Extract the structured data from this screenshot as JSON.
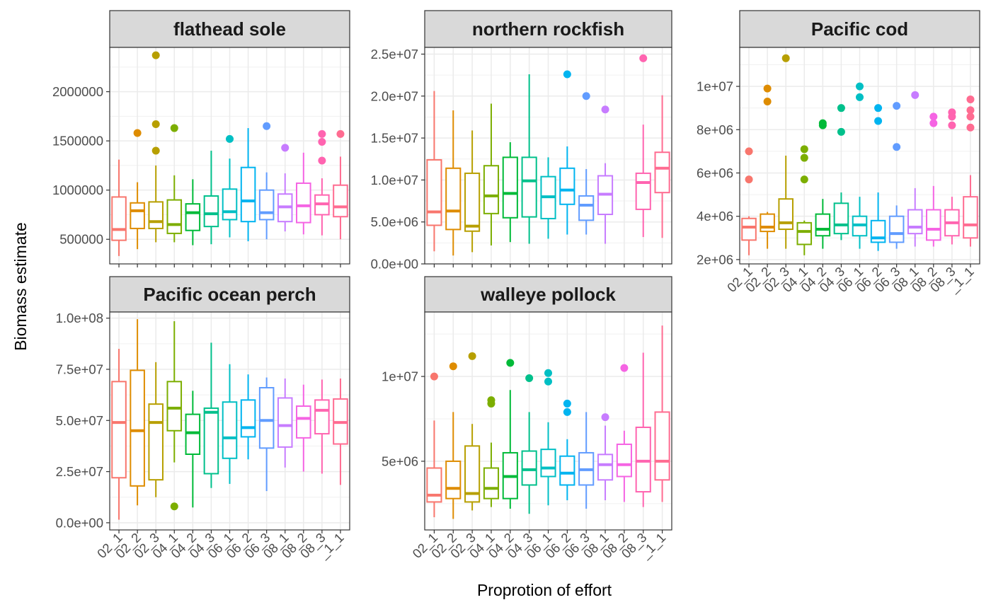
{
  "chart_data": {
    "type": "box",
    "ylabel": "Biomass estimate",
    "xlabel": "Proprotion of effort",
    "categories": [
      "02_1",
      "02_2",
      "02_3",
      "04_1",
      "04_2",
      "04_3",
      "06_1",
      "06_2",
      "06_3",
      "08_1",
      "08_2",
      "08_3",
      "_1_1"
    ],
    "colors": [
      "#F8766D",
      "#DE8C00",
      "#B79F00",
      "#7CAE00",
      "#00BA38",
      "#00C08B",
      "#00BFC4",
      "#00B4F0",
      "#619CFF",
      "#C77CFF",
      "#F564E3",
      "#FF64B0",
      "#FF6C91"
    ],
    "panels": [
      {
        "title": "flathead sole",
        "ylim": [
          250000,
          2450000
        ],
        "yticks": [
          500000,
          1000000,
          1500000,
          2000000
        ],
        "ytick_labels": [
          "500000",
          "1000000",
          "1500000",
          "2000000"
        ],
        "boxes": [
          {
            "lo": 330000,
            "q1": 490000,
            "med": 600000,
            "q3": 930000,
            "hi": 1310000,
            "out": []
          },
          {
            "lo": 400000,
            "q1": 610000,
            "med": 790000,
            "q3": 870000,
            "hi": 1080000,
            "out": [
              1580000
            ]
          },
          {
            "lo": 470000,
            "q1": 610000,
            "med": 680000,
            "q3": 880000,
            "hi": 1250000,
            "out": [
              1400000,
              1670000,
              2370000
            ]
          },
          {
            "lo": 470000,
            "q1": 560000,
            "med": 650000,
            "q3": 900000,
            "hi": 1150000,
            "out": [
              1630000
            ]
          },
          {
            "lo": 440000,
            "q1": 590000,
            "med": 770000,
            "q3": 860000,
            "hi": 1110000,
            "out": []
          },
          {
            "lo": 450000,
            "q1": 630000,
            "med": 760000,
            "q3": 940000,
            "hi": 1400000,
            "out": []
          },
          {
            "lo": 520000,
            "q1": 700000,
            "med": 780000,
            "q3": 1010000,
            "hi": 1320000,
            "out": [
              1520000
            ]
          },
          {
            "lo": 480000,
            "q1": 680000,
            "med": 890000,
            "q3": 1230000,
            "hi": 1630000,
            "out": []
          },
          {
            "lo": 500000,
            "q1": 700000,
            "med": 770000,
            "q3": 1000000,
            "hi": 1180000,
            "out": [
              1650000
            ]
          },
          {
            "lo": 580000,
            "q1": 680000,
            "med": 830000,
            "q3": 960000,
            "hi": 1170000,
            "out": [
              1430000
            ]
          },
          {
            "lo": 550000,
            "q1": 670000,
            "med": 840000,
            "q3": 1070000,
            "hi": 1380000,
            "out": []
          },
          {
            "lo": 540000,
            "q1": 750000,
            "med": 860000,
            "q3": 950000,
            "hi": 1120000,
            "out": [
              1300000,
              1490000,
              1570000
            ]
          },
          {
            "lo": 500000,
            "q1": 730000,
            "med": 830000,
            "q3": 1050000,
            "hi": 1340000,
            "out": [
              1570000
            ]
          }
        ]
      },
      {
        "title": "northern rockfish",
        "ylim": [
          0,
          25800000
        ],
        "yticks": [
          0,
          5000000,
          10000000,
          15000000,
          20000000,
          25000000
        ],
        "ytick_labels": [
          "0.0e+00",
          "5.0e+06",
          "1.0e+07",
          "1.5e+07",
          "2.0e+07",
          "2.5e+07"
        ],
        "boxes": [
          {
            "lo": 1500000,
            "q1": 4600000,
            "med": 6200000,
            "q3": 12400000,
            "hi": 20600000,
            "out": []
          },
          {
            "lo": 1000000,
            "q1": 4100000,
            "med": 6300000,
            "q3": 11400000,
            "hi": 18300000,
            "out": []
          },
          {
            "lo": 1400000,
            "q1": 3900000,
            "med": 4500000,
            "q3": 10800000,
            "hi": 15900000,
            "out": []
          },
          {
            "lo": 2200000,
            "q1": 6000000,
            "med": 8100000,
            "q3": 11700000,
            "hi": 19100000,
            "out": []
          },
          {
            "lo": 2600000,
            "q1": 5500000,
            "med": 8400000,
            "q3": 12700000,
            "hi": 14500000,
            "out": []
          },
          {
            "lo": 2400000,
            "q1": 5600000,
            "med": 9900000,
            "q3": 12700000,
            "hi": 22600000,
            "out": []
          },
          {
            "lo": 3000000,
            "q1": 5400000,
            "med": 8000000,
            "q3": 10400000,
            "hi": 12700000,
            "out": []
          },
          {
            "lo": 3500000,
            "q1": 7100000,
            "med": 8800000,
            "q3": 11400000,
            "hi": 14000000,
            "out": [
              22600000
            ]
          },
          {
            "lo": 3500000,
            "q1": 5200000,
            "med": 7000000,
            "q3": 8100000,
            "hi": 11300000,
            "out": [
              20000000
            ]
          },
          {
            "lo": 2400000,
            "q1": 5900000,
            "med": 8300000,
            "q3": 10500000,
            "hi": 12000000,
            "out": [
              18400000
            ]
          },
          null,
          {
            "lo": 3200000,
            "q1": 6500000,
            "med": 9700000,
            "q3": 10800000,
            "hi": 16600000,
            "out": [
              24500000
            ]
          },
          {
            "lo": 3100000,
            "q1": 8500000,
            "med": 11400000,
            "q3": 13300000,
            "hi": 20100000,
            "out": []
          }
        ]
      },
      {
        "title": "Pacific cod",
        "ylim": [
          1800000,
          11800000
        ],
        "yticks": [
          2000000,
          4000000,
          6000000,
          8000000,
          10000000
        ],
        "ytick_labels": [
          "2e+06",
          "4e+06",
          "6e+06",
          "8e+06",
          "1e+07"
        ],
        "boxes": [
          {
            "lo": 2200000,
            "q1": 2900000,
            "med": 3500000,
            "q3": 3900000,
            "hi": 4000000,
            "out": [
              5700000,
              7000000
            ]
          },
          {
            "lo": 2500000,
            "q1": 3300000,
            "med": 3500000,
            "q3": 4100000,
            "hi": 4200000,
            "out": [
              9300000,
              9900000
            ]
          },
          {
            "lo": 2500000,
            "q1": 3400000,
            "med": 3700000,
            "q3": 4800000,
            "hi": 6800000,
            "out": [
              11300000
            ]
          },
          {
            "lo": 2200000,
            "q1": 2700000,
            "med": 3300000,
            "q3": 3700000,
            "hi": 3800000,
            "out": [
              5700000,
              6700000,
              7100000
            ]
          },
          {
            "lo": 2500000,
            "q1": 3100000,
            "med": 3400000,
            "q3": 4100000,
            "hi": 4800000,
            "out": [
              8200000,
              8300000
            ]
          },
          {
            "lo": 2900000,
            "q1": 3200000,
            "med": 3600000,
            "q3": 4600000,
            "hi": 5100000,
            "out": [
              7900000,
              9000000
            ]
          },
          {
            "lo": 2500000,
            "q1": 3100000,
            "med": 3600000,
            "q3": 4000000,
            "hi": 4900000,
            "out": [
              9500000,
              10000000
            ]
          },
          {
            "lo": 2400000,
            "q1": 2800000,
            "med": 3000000,
            "q3": 3800000,
            "hi": 5100000,
            "out": [
              8400000,
              9000000
            ]
          },
          {
            "lo": 2500000,
            "q1": 2800000,
            "med": 3200000,
            "q3": 4000000,
            "hi": 4500000,
            "out": [
              7200000,
              9100000
            ]
          },
          {
            "lo": 2600000,
            "q1": 3200000,
            "med": 3500000,
            "q3": 4300000,
            "hi": 5300000,
            "out": [
              9600000
            ]
          },
          {
            "lo": 2600000,
            "q1": 2900000,
            "med": 3400000,
            "q3": 4300000,
            "hi": 5400000,
            "out": [
              8300000,
              8600000
            ]
          },
          {
            "lo": 2700000,
            "q1": 3100000,
            "med": 3700000,
            "q3": 4300000,
            "hi": 4900000,
            "out": [
              8200000,
              8600000,
              8800000
            ]
          },
          {
            "lo": 2600000,
            "q1": 3000000,
            "med": 3600000,
            "q3": 4900000,
            "hi": 5900000,
            "out": [
              8100000,
              8600000,
              8900000,
              9400000
            ]
          }
        ]
      },
      {
        "title": "Pacific ocean perch",
        "ylim": [
          -3500000,
          103000000
        ],
        "yticks": [
          0,
          25000000,
          50000000,
          75000000,
          100000000
        ],
        "ytick_labels": [
          "0.0e+00",
          "2.5e+07",
          "5.0e+07",
          "7.5e+07",
          "1.0e+08"
        ],
        "boxes": [
          {
            "lo": 1500000,
            "q1": 22000000,
            "med": 49000000,
            "q3": 69000000,
            "hi": 85000000,
            "out": []
          },
          {
            "lo": 8500000,
            "q1": 18000000,
            "med": 45000000,
            "q3": 74500000,
            "hi": 99500000,
            "out": []
          },
          {
            "lo": 12500000,
            "q1": 21000000,
            "med": 49000000,
            "q3": 58000000,
            "hi": 78500000,
            "out": []
          },
          {
            "lo": 29500000,
            "q1": 45000000,
            "med": 56000000,
            "q3": 69000000,
            "hi": 98500000,
            "out": [
              8000000
            ]
          },
          {
            "lo": 7500000,
            "q1": 33500000,
            "med": 44000000,
            "q3": 53000000,
            "hi": 64500000,
            "out": []
          },
          {
            "lo": 17000000,
            "q1": 24000000,
            "med": 54000000,
            "q3": 56000000,
            "hi": 88000000,
            "out": []
          },
          {
            "lo": 19000000,
            "q1": 31500000,
            "med": 41500000,
            "q3": 59000000,
            "hi": 77500000,
            "out": []
          },
          {
            "lo": 31000000,
            "q1": 42000000,
            "med": 46500000,
            "q3": 60000000,
            "hi": 72500000,
            "out": []
          },
          {
            "lo": 15500000,
            "q1": 36500000,
            "med": 50000000,
            "q3": 66000000,
            "hi": 71000000,
            "out": []
          },
          {
            "lo": 27000000,
            "q1": 37000000,
            "med": 47500000,
            "q3": 61000000,
            "hi": 70500000,
            "out": []
          },
          {
            "lo": 25000000,
            "q1": 41500000,
            "med": 51000000,
            "q3": 57000000,
            "hi": 67500000,
            "out": []
          },
          {
            "lo": 24000000,
            "q1": 43500000,
            "med": 55000000,
            "q3": 60000000,
            "hi": 70000000,
            "out": []
          },
          {
            "lo": 18500000,
            "q1": 38500000,
            "med": 49000000,
            "q3": 60500000,
            "hi": 70500000,
            "out": []
          }
        ]
      },
      {
        "title": "walleye pollock",
        "ylim": [
          950000,
          13800000
        ],
        "yticks": [
          5000000,
          10000000
        ],
        "ytick_labels": [
          "5e+06",
          "1e+07"
        ],
        "boxes": [
          {
            "lo": 1700000,
            "q1": 2600000,
            "med": 3000000,
            "q3": 4600000,
            "hi": 7400000,
            "out": [
              10000000
            ]
          },
          {
            "lo": 1600000,
            "q1": 2800000,
            "med": 3400000,
            "q3": 5000000,
            "hi": 7900000,
            "out": [
              10600000
            ]
          },
          {
            "lo": 2100000,
            "q1": 2600000,
            "med": 3100000,
            "q3": 5900000,
            "hi": 7200000,
            "out": [
              11200000
            ]
          },
          {
            "lo": 2300000,
            "q1": 2800000,
            "med": 3400000,
            "q3": 4600000,
            "hi": 6100000,
            "out": [
              8400000,
              8600000
            ]
          },
          {
            "lo": 2200000,
            "q1": 2800000,
            "med": 4100000,
            "q3": 5500000,
            "hi": 9200000,
            "out": [
              10800000
            ]
          },
          {
            "lo": 1900000,
            "q1": 3600000,
            "med": 4500000,
            "q3": 5600000,
            "hi": 7900000,
            "out": [
              9900000
            ]
          },
          {
            "lo": 2400000,
            "q1": 4100000,
            "med": 4600000,
            "q3": 5700000,
            "hi": 7300000,
            "out": [
              9700000,
              10200000
            ]
          },
          {
            "lo": 2700000,
            "q1": 3600000,
            "med": 4300000,
            "q3": 5300000,
            "hi": 6300000,
            "out": [
              7900000,
              8400000
            ]
          },
          {
            "lo": 2200000,
            "q1": 3600000,
            "med": 4500000,
            "q3": 5500000,
            "hi": 7900000,
            "out": []
          },
          {
            "lo": 2700000,
            "q1": 3900000,
            "med": 4800000,
            "q3": 5400000,
            "hi": 7100000,
            "out": [
              7600000
            ]
          },
          {
            "lo": 2600000,
            "q1": 4100000,
            "med": 4800000,
            "q3": 6000000,
            "hi": 6800000,
            "out": [
              10500000
            ]
          },
          {
            "lo": 2300000,
            "q1": 3200000,
            "med": 5000000,
            "q3": 7000000,
            "hi": 11400000,
            "out": []
          },
          {
            "lo": 2600000,
            "q1": 3900000,
            "med": 5000000,
            "q3": 7900000,
            "hi": 13000000,
            "out": []
          }
        ]
      }
    ]
  }
}
